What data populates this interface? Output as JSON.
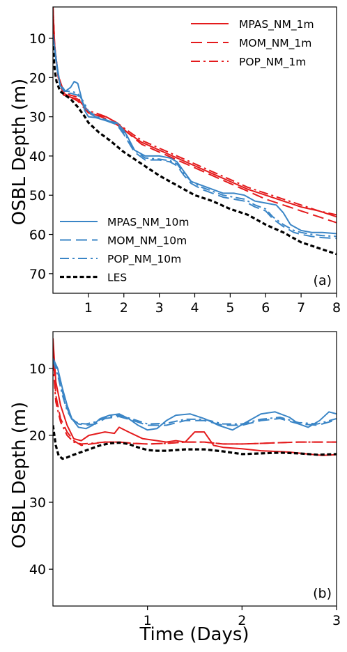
{
  "colors": {
    "red": "#e41a1c",
    "blue": "#3a85c6",
    "black": "#000000"
  },
  "chart_data": [
    {
      "type": "line",
      "panel_label": "(a)",
      "ylabel": "OSBL Depth (m)",
      "xlabel": "",
      "xlim": [
        0,
        8
      ],
      "ylim": [
        75,
        2
      ],
      "y_inverted": true,
      "xticks": [
        1,
        2,
        3,
        4,
        5,
        6,
        7,
        8
      ],
      "yticks": [
        10,
        20,
        30,
        40,
        50,
        60,
        70
      ],
      "legend_top": [
        "MPAS_NM_1m",
        "MOM_NM_1m",
        "POP_NM_1m"
      ],
      "legend_bottom": [
        "MPAS_NM_10m",
        "MOM_NM_10m",
        "POP_NM_10m",
        "LES"
      ],
      "series": [
        {
          "name": "MPAS_NM_1m",
          "color": "red",
          "dash": "solid",
          "x": [
            0,
            0.05,
            0.15,
            0.3,
            0.5,
            0.7,
            0.85,
            1.0,
            1.2,
            1.5,
            1.8,
            2.1,
            2.5,
            3.0,
            3.5,
            4.0,
            4.5,
            5.0,
            5.5,
            6.0,
            6.5,
            7.0,
            7.5,
            8.0
          ],
          "y": [
            2,
            12,
            20,
            24,
            25,
            25.5,
            27,
            29,
            29.5,
            30,
            31.5,
            34,
            36.5,
            38.5,
            40.5,
            42.5,
            44.5,
            46.5,
            48.5,
            50,
            51.5,
            53,
            54,
            55.5
          ]
        },
        {
          "name": "MOM_NM_1m",
          "color": "red",
          "dash": "long",
          "x": [
            0,
            0.05,
            0.15,
            0.3,
            0.5,
            0.7,
            0.85,
            1.0,
            1.2,
            1.5,
            1.8,
            2.1,
            2.5,
            3.0,
            3.5,
            4.0,
            4.5,
            5.0,
            5.5,
            6.0,
            6.5,
            7.0,
            7.5,
            8.0
          ],
          "y": [
            2,
            12,
            20,
            24.5,
            25,
            26,
            27.5,
            29,
            29.5,
            30.5,
            32,
            34,
            37,
            39,
            41,
            43,
            45,
            47,
            49,
            51,
            52.5,
            54,
            55.5,
            57
          ]
        },
        {
          "name": "POP_NM_1m",
          "color": "red",
          "dash": "dashdot",
          "x": [
            0,
            0.05,
            0.15,
            0.3,
            0.5,
            0.7,
            0.85,
            1.0,
            1.2,
            1.5,
            1.8,
            2.1,
            2.5,
            3.0,
            3.5,
            4.0,
            4.5,
            5.0,
            5.5,
            6.0,
            6.5,
            7.0,
            7.5,
            8.0
          ],
          "y": [
            2,
            12,
            19.5,
            23.5,
            24.5,
            25,
            27,
            28.5,
            29,
            30,
            31.5,
            33.5,
            36,
            38,
            40,
            42,
            44,
            46,
            48,
            49.5,
            51,
            52.5,
            54,
            55
          ]
        },
        {
          "name": "MPAS_NM_10m",
          "color": "blue",
          "dash": "solid",
          "x": [
            0,
            0.1,
            0.2,
            0.35,
            0.5,
            0.6,
            0.7,
            0.8,
            0.9,
            1.0,
            1.2,
            1.5,
            1.8,
            2.0,
            2.1,
            2.3,
            2.6,
            3.0,
            3.3,
            3.5,
            3.7,
            3.9,
            4.2,
            4.5,
            4.8,
            5.1,
            5.4,
            5.7,
            6.0,
            6.3,
            6.5,
            6.7,
            7.0,
            7.3,
            7.6,
            8.0
          ],
          "y": [
            9,
            16,
            22,
            23.5,
            22.5,
            21,
            21.5,
            25,
            28.5,
            30,
            30.2,
            31,
            31.5,
            33.5,
            35,
            38.5,
            40,
            40,
            40.5,
            41.5,
            44,
            46.5,
            47.5,
            48.5,
            49.5,
            49.5,
            50,
            51.5,
            52,
            52.5,
            54.5,
            57.5,
            59,
            59.5,
            59.5,
            59.8
          ]
        },
        {
          "name": "MOM_NM_10m",
          "color": "blue",
          "dash": "long",
          "x": [
            0,
            0.1,
            0.2,
            0.35,
            0.5,
            0.7,
            0.85,
            1.0,
            1.2,
            1.5,
            1.8,
            2.0,
            2.1,
            2.3,
            2.6,
            3.0,
            3.3,
            3.5,
            3.7,
            3.9,
            4.2,
            4.5,
            4.8,
            5.1,
            5.4,
            5.7,
            6.0,
            6.2,
            6.5,
            6.8,
            7.0,
            7.3,
            7.6,
            8.0
          ],
          "y": [
            9,
            17,
            22,
            24,
            24,
            24.5,
            26.5,
            29,
            30,
            31,
            32,
            34.5,
            36,
            39,
            41,
            41,
            41.5,
            42.5,
            45,
            47,
            48.5,
            49.5,
            50.5,
            51,
            51.5,
            53,
            54,
            56,
            58,
            59.5,
            60,
            60.5,
            60.8,
            61
          ]
        },
        {
          "name": "POP_NM_10m",
          "color": "blue",
          "dash": "dashdot",
          "x": [
            0,
            0.1,
            0.2,
            0.35,
            0.5,
            0.7,
            0.85,
            1.0,
            1.2,
            1.5,
            1.8,
            2.0,
            2.1,
            2.3,
            2.6,
            3.0,
            3.3,
            3.5,
            3.7,
            3.9,
            4.2,
            4.5,
            4.8,
            5.1,
            5.4,
            5.7,
            6.0,
            6.2,
            6.5,
            6.8,
            7.0,
            7.3,
            7.6,
            8.0
          ],
          "y": [
            9,
            16.5,
            21.5,
            23.5,
            23.5,
            24,
            26,
            28.5,
            29.8,
            30.8,
            31.8,
            34,
            35.5,
            38.5,
            40.5,
            40.8,
            41.2,
            42,
            44.5,
            46.5,
            48,
            49,
            50,
            50.5,
            51,
            52.5,
            53.5,
            55.5,
            57.5,
            59,
            59.5,
            60,
            60.3,
            60.5
          ]
        },
        {
          "name": "LES",
          "color": "black",
          "dash": "short",
          "x": [
            0,
            0.05,
            0.1,
            0.2,
            0.35,
            0.5,
            0.7,
            0.9,
            1.0,
            1.3,
            1.6,
            2.0,
            2.5,
            3.0,
            3.5,
            4.0,
            4.5,
            5.0,
            5.5,
            6.0,
            6.5,
            7.0,
            7.5,
            8.0
          ],
          "y": [
            12,
            18,
            21,
            23.5,
            24.5,
            25.5,
            27.5,
            30,
            31.5,
            34,
            36,
            39,
            42,
            45,
            47.5,
            50,
            51.5,
            53.5,
            55,
            57.5,
            59.5,
            62,
            63.5,
            65
          ]
        }
      ]
    },
    {
      "type": "line",
      "panel_label": "(b)",
      "ylabel": "OSBL Depth (m)",
      "xlabel": "Time (Days)",
      "xlim": [
        0,
        3
      ],
      "ylim": [
        45.5,
        4.5
      ],
      "y_inverted": true,
      "xticks": [
        1,
        2,
        3
      ],
      "yticks": [
        10,
        20,
        30,
        40
      ],
      "series": [
        {
          "name": "MPAS_NM_1m",
          "color": "red",
          "dash": "solid",
          "x": [
            0,
            0.03,
            0.08,
            0.15,
            0.22,
            0.3,
            0.38,
            0.45,
            0.55,
            0.65,
            0.7,
            0.8,
            0.95,
            1.1,
            1.2,
            1.3,
            1.4,
            1.5,
            1.6,
            1.7,
            1.8,
            2.0,
            2.2,
            2.5,
            2.7,
            2.85,
            3.0
          ],
          "y": [
            5.5,
            12,
            15.5,
            18.5,
            20.5,
            20.8,
            20,
            19.8,
            19.5,
            19.7,
            18.8,
            19.5,
            20.5,
            20.8,
            21,
            20.8,
            21,
            19.5,
            19.5,
            21.5,
            21.8,
            22,
            22.3,
            22.5,
            22.8,
            23,
            22.9
          ]
        },
        {
          "name": "MOM_NM_1m",
          "color": "red",
          "dash": "long",
          "x": [
            0,
            0.03,
            0.08,
            0.15,
            0.22,
            0.3,
            0.4,
            0.55,
            0.7,
            0.85,
            1.0,
            1.2,
            1.4,
            1.6,
            1.8,
            2.0,
            2.2,
            2.4,
            2.6,
            2.8,
            3.0
          ],
          "y": [
            7,
            14,
            17.5,
            19.5,
            20.8,
            21.5,
            21.3,
            21,
            21,
            21.2,
            21.3,
            21.2,
            21,
            21,
            21.3,
            21.3,
            21.2,
            21.1,
            21,
            21,
            21
          ]
        },
        {
          "name": "POP_NM_1m",
          "color": "red",
          "dash": "dashdot",
          "x": [
            0,
            0.03,
            0.08,
            0.15,
            0.22,
            0.3,
            0.4,
            0.55,
            0.7,
            0.85,
            1.0,
            1.2,
            1.4,
            1.6,
            1.8,
            2.0,
            2.2,
            2.4,
            2.6,
            2.8,
            3.0
          ],
          "y": [
            9,
            15,
            18,
            20,
            21,
            21.3,
            21.2,
            21,
            21,
            21.2,
            21.3,
            21.2,
            21,
            21,
            21.3,
            21.3,
            21.2,
            21.1,
            21,
            21,
            21
          ]
        },
        {
          "name": "MPAS_NM_10m",
          "color": "blue",
          "dash": "solid",
          "x": [
            0,
            0.05,
            0.1,
            0.15,
            0.2,
            0.27,
            0.35,
            0.42,
            0.5,
            0.6,
            0.7,
            0.8,
            0.9,
            1.0,
            1.1,
            1.2,
            1.3,
            1.45,
            1.6,
            1.75,
            1.9,
            2.05,
            2.2,
            2.35,
            2.5,
            2.6,
            2.7,
            2.82,
            2.92,
            3.0
          ],
          "y": [
            8.5,
            10,
            13,
            15.5,
            17.5,
            18.8,
            19,
            18.5,
            17.5,
            17,
            16.8,
            17.5,
            18.5,
            19.2,
            19,
            17.8,
            17,
            16.8,
            17.5,
            18.5,
            19.2,
            18,
            16.8,
            16.5,
            17.3,
            18.3,
            18.8,
            17.8,
            16.5,
            16.8
          ]
        },
        {
          "name": "MOM_NM_10m",
          "color": "blue",
          "dash": "long",
          "x": [
            0,
            0.05,
            0.1,
            0.15,
            0.2,
            0.27,
            0.35,
            0.45,
            0.55,
            0.7,
            0.85,
            1.0,
            1.2,
            1.4,
            1.6,
            1.8,
            2.0,
            2.2,
            2.4,
            2.6,
            2.8,
            3.0
          ],
          "y": [
            8.5,
            10.5,
            13.5,
            16,
            17.5,
            18.3,
            18.5,
            18.3,
            17.5,
            17.2,
            17.8,
            18.5,
            18.5,
            17.8,
            17.8,
            18.5,
            18.5,
            17.8,
            17.5,
            18.3,
            18.5,
            17.7
          ]
        },
        {
          "name": "POP_NM_10m",
          "color": "blue",
          "dash": "dashdot",
          "x": [
            0,
            0.05,
            0.1,
            0.15,
            0.2,
            0.27,
            0.35,
            0.45,
            0.55,
            0.7,
            0.85,
            1.0,
            1.2,
            1.4,
            1.6,
            1.8,
            2.0,
            2.2,
            2.4,
            2.6,
            2.8,
            3.0
          ],
          "y": [
            8.8,
            11,
            14,
            16.3,
            17.6,
            18.2,
            18.3,
            18,
            17.3,
            17,
            17.6,
            18.3,
            18.2,
            17.6,
            17.6,
            18.3,
            18.3,
            17.6,
            17.3,
            18.1,
            18.3,
            17.5
          ]
        },
        {
          "name": "LES",
          "color": "black",
          "dash": "short",
          "x": [
            0,
            0.03,
            0.06,
            0.1,
            0.15,
            0.2,
            0.3,
            0.4,
            0.5,
            0.6,
            0.7,
            0.8,
            0.9,
            1.0,
            1.1,
            1.2,
            1.4,
            1.6,
            1.8,
            2.0,
            2.2,
            2.4,
            2.6,
            2.8,
            3.0
          ],
          "y": [
            18.5,
            21.5,
            23,
            23.5,
            23.3,
            23,
            22.5,
            22,
            21.5,
            21.2,
            21.1,
            21.3,
            21.8,
            22.2,
            22.3,
            22.3,
            22.1,
            22.1,
            22.4,
            22.8,
            22.7,
            22.6,
            22.7,
            22.9,
            22.8
          ]
        }
      ]
    }
  ]
}
